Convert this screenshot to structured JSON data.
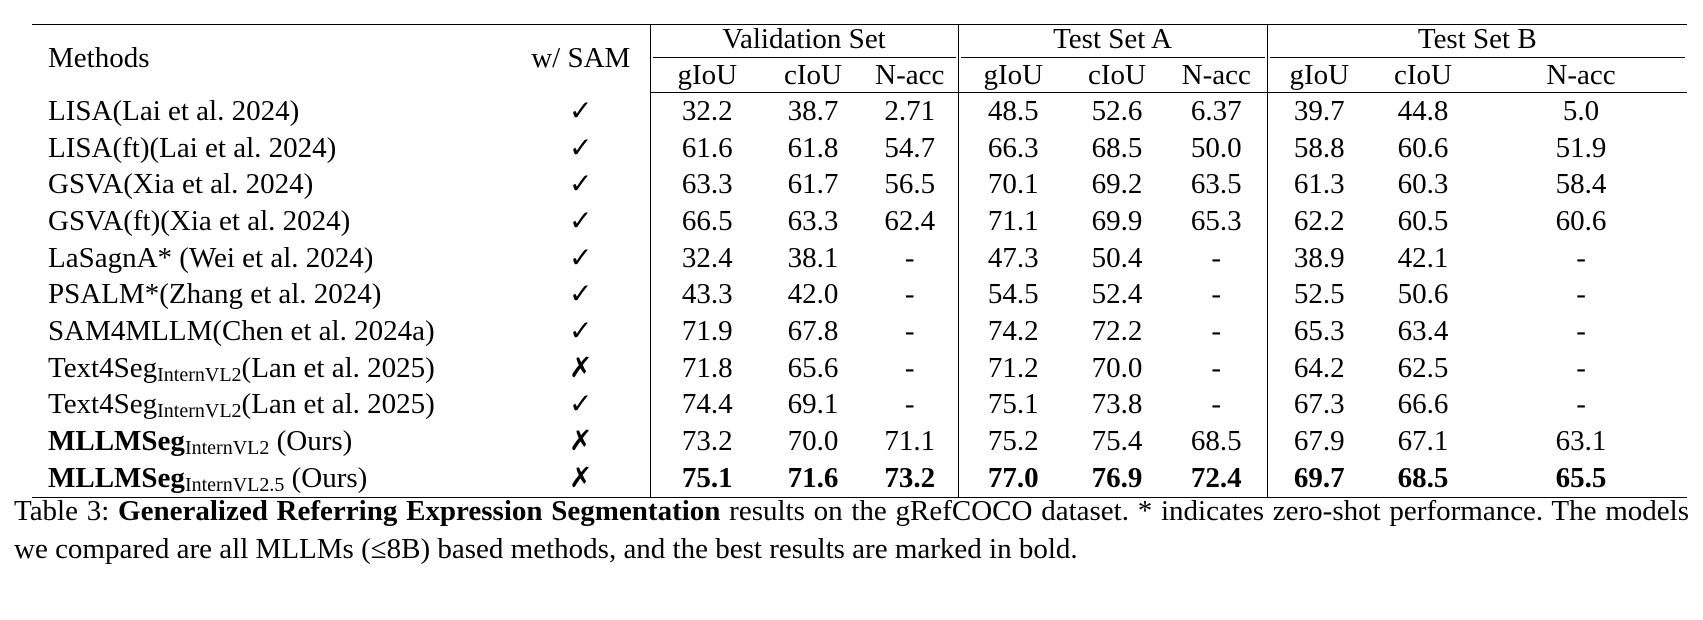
{
  "table": {
    "header": {
      "methods": "Methods",
      "sam": "w/ SAM",
      "groups": [
        "Validation Set",
        "Test Set A",
        "Test Set B"
      ],
      "metrics": [
        "gIoU",
        "cIoU",
        "N-acc",
        "gIoU",
        "cIoU",
        "N-acc",
        "gIoU",
        "cIoU",
        "N-acc"
      ]
    },
    "rows": [
      {
        "name": "LISA",
        "sub": "",
        "suffix": "(Lai et al. 2024)",
        "bold_name": false,
        "sam": "✓",
        "values": [
          "32.2",
          "38.7",
          "2.71",
          "48.5",
          "52.6",
          "6.37",
          "39.7",
          "44.8",
          "5.0"
        ],
        "bold_values": false
      },
      {
        "name": "LISA(ft)",
        "sub": "",
        "suffix": "(Lai et al. 2024)",
        "bold_name": false,
        "sam": "✓",
        "values": [
          "61.6",
          "61.8",
          "54.7",
          "66.3",
          "68.5",
          "50.0",
          "58.8",
          "60.6",
          "51.9"
        ],
        "bold_values": false
      },
      {
        "name": "GSVA",
        "sub": "",
        "suffix": "(Xia et al. 2024)",
        "bold_name": false,
        "sam": "✓",
        "values": [
          "63.3",
          "61.7",
          "56.5",
          "70.1",
          "69.2",
          "63.5",
          "61.3",
          "60.3",
          "58.4"
        ],
        "bold_values": false
      },
      {
        "name": "GSVA(ft)",
        "sub": "",
        "suffix": "(Xia et al. 2024)",
        "bold_name": false,
        "sam": "✓",
        "values": [
          "66.5",
          "63.3",
          "62.4",
          "71.1",
          "69.9",
          "65.3",
          "62.2",
          "60.5",
          "60.6"
        ],
        "bold_values": false
      },
      {
        "name": "LaSagnA*",
        "sub": "",
        "suffix": " (Wei et al. 2024)",
        "bold_name": false,
        "sam": "✓",
        "values": [
          "32.4",
          "38.1",
          "-",
          "47.3",
          "50.4",
          "-",
          "38.9",
          "42.1",
          "-"
        ],
        "bold_values": false
      },
      {
        "name": "PSALM*",
        "sub": "",
        "suffix": "(Zhang et al. 2024)",
        "bold_name": false,
        "sam": "✓",
        "values": [
          "43.3",
          "42.0",
          "-",
          "54.5",
          "52.4",
          "-",
          "52.5",
          "50.6",
          "-"
        ],
        "bold_values": false
      },
      {
        "name": "SAM4MLLM",
        "sub": "",
        "suffix": "(Chen et al. 2024a)",
        "bold_name": false,
        "sam": "✓",
        "values": [
          "71.9",
          "67.8",
          "-",
          "74.2",
          "72.2",
          "-",
          "65.3",
          "63.4",
          "-"
        ],
        "bold_values": false
      },
      {
        "name": "Text4Seg",
        "sub": "InternVL2",
        "suffix": "(Lan et al. 2025)",
        "bold_name": false,
        "sam": "✗",
        "values": [
          "71.8",
          "65.6",
          "-",
          "71.2",
          "70.0",
          "-",
          "64.2",
          "62.5",
          "-"
        ],
        "bold_values": false
      },
      {
        "name": "Text4Seg",
        "sub": "InternVL2",
        "suffix": "(Lan et al. 2025)",
        "bold_name": false,
        "sam": "✓",
        "values": [
          "74.4",
          "69.1",
          "-",
          "75.1",
          "73.8",
          "-",
          "67.3",
          "66.6",
          "-"
        ],
        "bold_values": false
      },
      {
        "name": "MLLMSeg",
        "sub": "InternVL2",
        "suffix": " (Ours)",
        "bold_name": true,
        "sam": "✗",
        "values": [
          "73.2",
          "70.0",
          "71.1",
          "75.2",
          "75.4",
          "68.5",
          "67.9",
          "67.1",
          "63.1"
        ],
        "bold_values": false
      },
      {
        "name": "MLLMSeg",
        "sub": "InternVL2.5",
        "suffix": " (Ours)",
        "bold_name": true,
        "sam": "✗",
        "values": [
          "75.1",
          "71.6",
          "73.2",
          "77.0",
          "76.9",
          "72.4",
          "69.7",
          "68.5",
          "65.5"
        ],
        "bold_values": true
      }
    ]
  },
  "caption": {
    "label": "Table 3: ",
    "bold": "Generalized Referring Expression Segmentation",
    "rest": " results on the gRefCOCO dataset. * indicates zero-shot performance. The models we compared are all MLLMs (≤8B) based methods, and the best results are marked in bold."
  }
}
